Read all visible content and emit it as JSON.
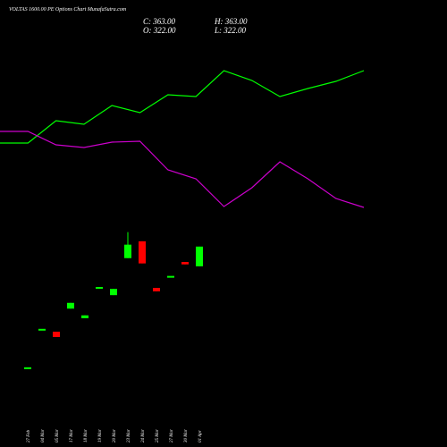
{
  "chart_data": [
    {
      "type": "candlestick",
      "title": "VOLTAS 1600.00 PE Options Chart MunafaSutra.com",
      "ohlc_labels": [
        "C: 363.00",
        "H: 363.00",
        "O: 322.00",
        "L: 322.00"
      ],
      "categories": [
        "27 Feb",
        "04 Mar",
        "05 Mar",
        "17 Mar",
        "18 Mar",
        "19 Mar",
        "20 Mar",
        "23 Mar",
        "24 Mar",
        "25 Mar",
        "27 Mar",
        "30 Mar",
        "01 Apr"
      ],
      "open": [
        112,
        192,
        186,
        234,
        214,
        279,
        262,
        339,
        374,
        277,
        302,
        331,
        322
      ],
      "high": [
        112,
        192,
        186,
        246,
        220,
        279,
        275,
        393,
        374,
        277,
        302,
        331,
        363
      ],
      "low": [
        112,
        192,
        175,
        234,
        214,
        279,
        262,
        339,
        328,
        270,
        302,
        326,
        322
      ],
      "close": [
        112,
        192,
        175,
        246,
        220,
        279,
        275,
        367,
        328,
        270,
        302,
        326,
        363
      ],
      "up_color": "#00ff00",
      "down_color": "#ff0000",
      "ylim": [
        95,
        411
      ]
    },
    {
      "type": "line",
      "x": [
        0,
        1,
        2,
        3,
        4,
        5,
        6,
        7,
        8,
        9,
        10,
        11,
        12,
        13
      ],
      "xlim": [
        0,
        13
      ],
      "series": [
        {
          "color": "#00ff00",
          "values": [
            90,
            90,
            115,
            111,
            132,
            124,
            144,
            142,
            171,
            160,
            142,
            151,
            159,
            171
          ]
        },
        {
          "color": "#cc00cc",
          "values": [
            103,
            103,
            88,
            85,
            91,
            92,
            60,
            50,
            19,
            40,
            69,
            50,
            28,
            18
          ]
        }
      ],
      "ylim": [
        0,
        250
      ]
    }
  ]
}
